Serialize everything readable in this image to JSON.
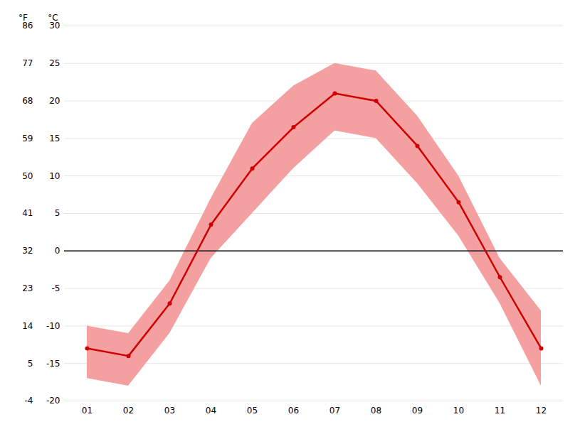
{
  "chart_data": {
    "type": "line",
    "categories": [
      "01",
      "02",
      "03",
      "04",
      "05",
      "06",
      "07",
      "08",
      "09",
      "10",
      "11",
      "12"
    ],
    "series": [
      {
        "type": "area",
        "color": "#f5a0a0",
        "low": [
          -17.0,
          -18.0,
          -11.0,
          -1.0,
          5.0,
          11.0,
          16.0,
          15.0,
          9.0,
          2.0,
          -7.0,
          -18.0
        ],
        "high": [
          -10.0,
          -11.0,
          -4.0,
          7.0,
          17.0,
          22.0,
          25.0,
          24.0,
          18.0,
          10.0,
          -1.0,
          -8.0
        ]
      },
      {
        "type": "line",
        "color": "#cc0000",
        "marker": "circle",
        "values": [
          -13.0,
          -14.0,
          -7.0,
          3.5,
          11.0,
          16.5,
          21.0,
          20.0,
          14.0,
          6.5,
          -3.5,
          -13.0
        ]
      }
    ],
    "ylabel": "°C",
    "ylim": [
      -20,
      30
    ],
    "yticks": [
      30,
      25,
      20,
      15,
      10,
      5,
      0,
      -5,
      -10,
      -15,
      -20
    ],
    "y2label": "°F",
    "y2lim": [
      -4,
      86
    ],
    "y2ticks": [
      86,
      77,
      68,
      59,
      50,
      41,
      32,
      23,
      14,
      5,
      -4
    ],
    "grid": true
  }
}
